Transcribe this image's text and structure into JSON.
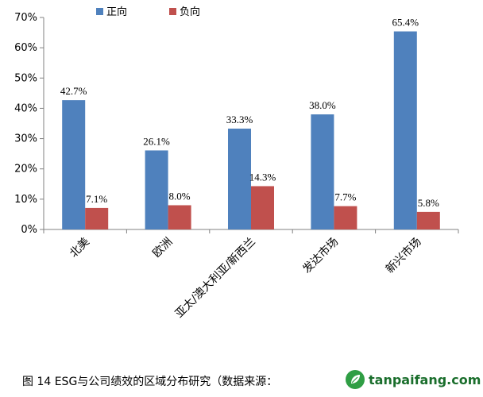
{
  "chart_data": {
    "type": "bar",
    "categories": [
      "北美",
      "欧洲",
      "亚太/澳大利亚/新西兰",
      "发达市场",
      "新兴市场"
    ],
    "series": [
      {
        "name": "正向",
        "values": [
          42.7,
          26.1,
          33.3,
          38.0,
          65.4
        ],
        "labels": [
          "42.7%",
          "26.1%",
          "33.3%",
          "38.0%",
          "65.4%"
        ],
        "color": "#4f81bd"
      },
      {
        "name": "负向",
        "values": [
          7.1,
          8.0,
          14.3,
          7.7,
          5.8
        ],
        "labels": [
          "7.1%",
          "8.0%",
          "14.3%",
          "7.7%",
          "5.8%"
        ],
        "color": "#c0504d"
      }
    ],
    "ylim": [
      0,
      70
    ],
    "yticks": [
      "0%",
      "10%",
      "20%",
      "30%",
      "40%",
      "50%",
      "60%",
      "70%"
    ],
    "legend_position": "top-left",
    "grid": false
  },
  "caption": "图  14 ESG与公司绩效的区域分布研究（数据来源：",
  "watermark": "tanpaifang.com"
}
